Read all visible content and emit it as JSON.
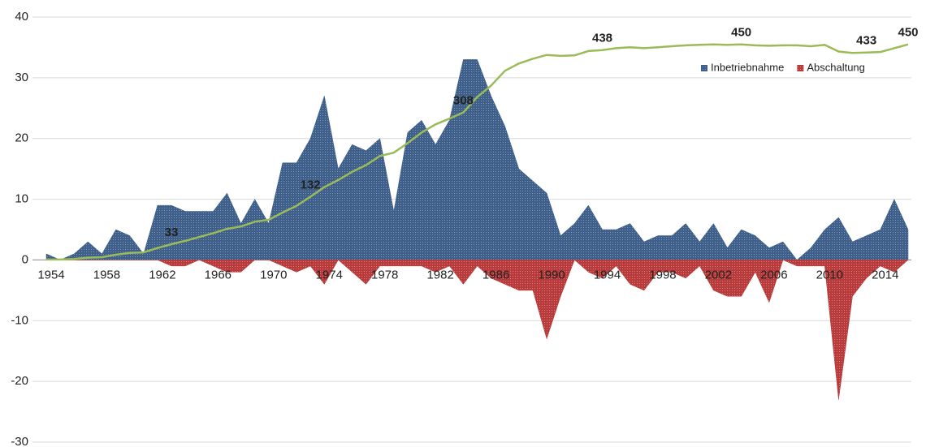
{
  "chart_data": {
    "type": "area",
    "x": [
      1954,
      1955,
      1956,
      1957,
      1958,
      1959,
      1960,
      1961,
      1962,
      1963,
      1964,
      1965,
      1966,
      1967,
      1968,
      1969,
      1970,
      1971,
      1972,
      1973,
      1974,
      1975,
      1976,
      1977,
      1978,
      1979,
      1980,
      1981,
      1982,
      1983,
      1984,
      1985,
      1986,
      1987,
      1988,
      1989,
      1990,
      1991,
      1992,
      1993,
      1994,
      1995,
      1996,
      1997,
      1998,
      1999,
      2000,
      2001,
      2002,
      2003,
      2004,
      2005,
      2006,
      2007,
      2008,
      2009,
      2010,
      2011,
      2012,
      2013,
      2014,
      2015,
      2016
    ],
    "xlim": [
      1954,
      2016
    ],
    "xticks": [
      1954,
      1958,
      1962,
      1966,
      1970,
      1974,
      1978,
      1982,
      1986,
      1990,
      1994,
      1998,
      2002,
      2006,
      2010,
      2014
    ],
    "ylim": [
      -30,
      40
    ],
    "yticks": [
      -30,
      -20,
      -10,
      0,
      10,
      20,
      30,
      40
    ],
    "y2lim": [
      -380,
      507
    ],
    "grid": true,
    "legend": "upper right",
    "series": [
      {
        "name": "Inbetriebnahme",
        "color": "#3e5f8a",
        "values": [
          1,
          0,
          1,
          3,
          1,
          5,
          4,
          1,
          9,
          9,
          8,
          8,
          8,
          11,
          6,
          10,
          6,
          16,
          16,
          20,
          27,
          15,
          19,
          18,
          20,
          8,
          21,
          23,
          19,
          23,
          33,
          33,
          27,
          22,
          15,
          13,
          11,
          4,
          6,
          9,
          5,
          5,
          6,
          3,
          4,
          4,
          6,
          3,
          6,
          2,
          5,
          4,
          2,
          3,
          0,
          2,
          5,
          7,
          3,
          4,
          5,
          10,
          5
        ]
      },
      {
        "name": "Abschaltung",
        "color": "#b83a3a",
        "values": [
          0,
          0,
          0,
          0,
          0,
          0,
          0,
          0,
          0,
          -1,
          -1,
          0,
          -1,
          -2,
          -2,
          0,
          0,
          -1,
          -2,
          -1,
          -4,
          0,
          -2,
          -4,
          -1,
          -1,
          -1,
          -1,
          -2,
          -1,
          -4,
          -1,
          -3,
          -4,
          -5,
          -5,
          -13,
          -6,
          0,
          -2,
          -3,
          -1,
          -4,
          -5,
          -2,
          -2,
          -3,
          -1,
          -5,
          -6,
          -6,
          -2,
          -7,
          0,
          -1,
          -1,
          -1,
          -23,
          -6,
          -3,
          -1,
          -2,
          0
        ]
      },
      {
        "type": "line",
        "axis": "y2",
        "color": "#9bbb59",
        "values": [
          1,
          1,
          2,
          5,
          6,
          11,
          15,
          16,
          25,
          33,
          40,
          48,
          56,
          65,
          70,
          80,
          84,
          99,
          113,
          132,
          152,
          167,
          184,
          198,
          217,
          224,
          244,
          266,
          283,
          295,
          308,
          340,
          364,
          395,
          410,
          420,
          428,
          426,
          427,
          436,
          438,
          442,
          444,
          442,
          444,
          446,
          448,
          449,
          450,
          449,
          450,
          448,
          447,
          448,
          448,
          446,
          449,
          435,
          432,
          433,
          434,
          442,
          450
        ],
        "value_labels": [
          null,
          null,
          null,
          null,
          null,
          null,
          null,
          null,
          null,
          "33",
          null,
          null,
          null,
          null,
          null,
          null,
          null,
          null,
          null,
          "132",
          null,
          null,
          null,
          null,
          null,
          null,
          null,
          null,
          null,
          null,
          "308",
          null,
          null,
          null,
          null,
          null,
          null,
          null,
          null,
          null,
          "438",
          null,
          null,
          null,
          null,
          null,
          null,
          null,
          null,
          null,
          "450",
          null,
          null,
          null,
          null,
          null,
          null,
          null,
          null,
          "433",
          null,
          null,
          "450"
        ]
      }
    ]
  }
}
